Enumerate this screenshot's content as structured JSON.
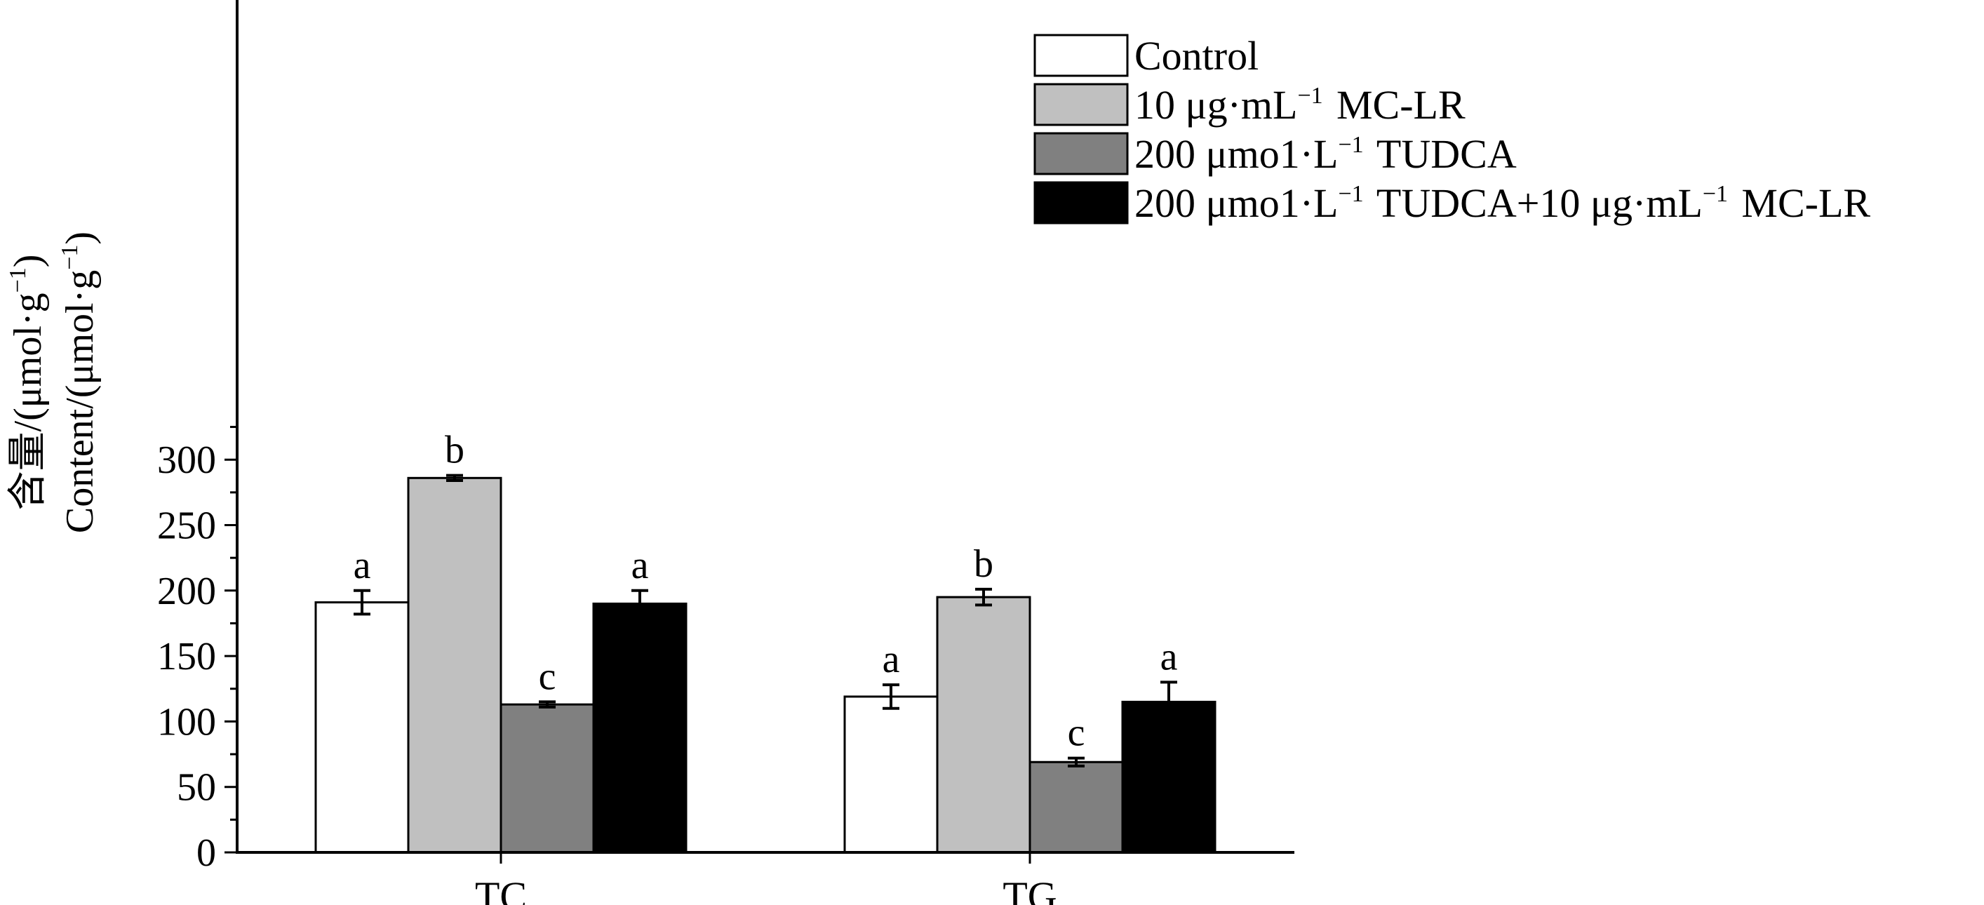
{
  "chart_data": {
    "type": "bar",
    "categories": [
      "TC",
      "TG"
    ],
    "series": [
      {
        "name": "Control",
        "values": [
          191,
          119
        ],
        "errors": [
          9,
          9
        ],
        "labels": [
          "a",
          "a"
        ],
        "fill": "#ffffff"
      },
      {
        "name": "10 μg·mL⁻¹ MC-LR",
        "values": [
          286,
          195
        ],
        "errors": [
          2,
          6
        ],
        "labels": [
          "b",
          "b"
        ],
        "fill": "#c0c0c0"
      },
      {
        "name": "200 μmo1·L⁻¹ TUDCA",
        "values": [
          113,
          69
        ],
        "errors": [
          2,
          3
        ],
        "labels": [
          "c",
          "c"
        ],
        "fill": "#808080"
      },
      {
        "name": "200 μmo1·L⁻¹ TUDCA+10 μg·mL⁻¹ MC-LR",
        "values": [
          190,
          115
        ],
        "errors": [
          10,
          15
        ],
        "labels": [
          "a",
          "a"
        ],
        "fill": "#000000"
      }
    ],
    "ylabel_line1": "含量/(μmol·g",
    "ylabel_line2": "Content/(μmol·g",
    "ylabel_sup": "−1",
    "ylabel_close": ")",
    "ylim": [
      0,
      325
    ],
    "yticks": [
      0,
      50,
      100,
      150,
      200,
      250,
      300
    ],
    "legend_position": "top-right",
    "grid": false
  }
}
